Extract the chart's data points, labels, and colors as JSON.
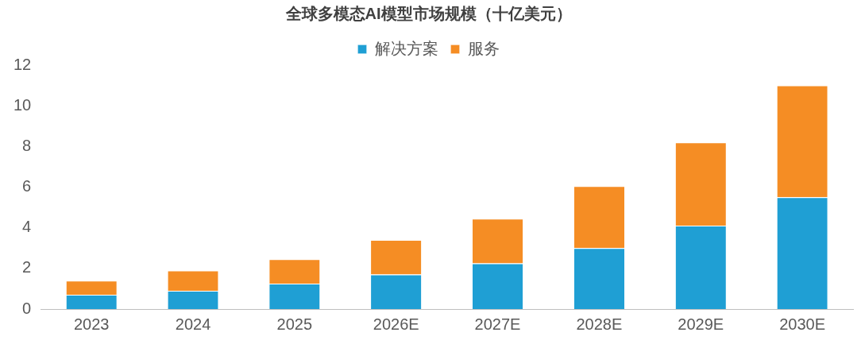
{
  "chart_data": {
    "type": "bar",
    "title": "全球多模态AI模型市场规模（十亿美元）",
    "categories": [
      "2023",
      "2024",
      "2025",
      "2026E",
      "2027E",
      "2028E",
      "2029E",
      "2030E"
    ],
    "series": [
      {
        "name": "解决方案",
        "color": "#1f9fd4",
        "values": [
          0.7,
          0.9,
          1.25,
          1.7,
          2.25,
          3.0,
          4.1,
          5.5
        ]
      },
      {
        "name": "服务",
        "color": "#f58d24",
        "values": [
          0.7,
          1.0,
          1.2,
          1.7,
          2.2,
          3.05,
          4.1,
          5.5
        ]
      }
    ],
    "stacked": true,
    "ylim": [
      0,
      12
    ],
    "yticks": [
      0,
      2,
      4,
      6,
      8,
      10,
      12
    ],
    "grid": false,
    "legend": "top"
  }
}
